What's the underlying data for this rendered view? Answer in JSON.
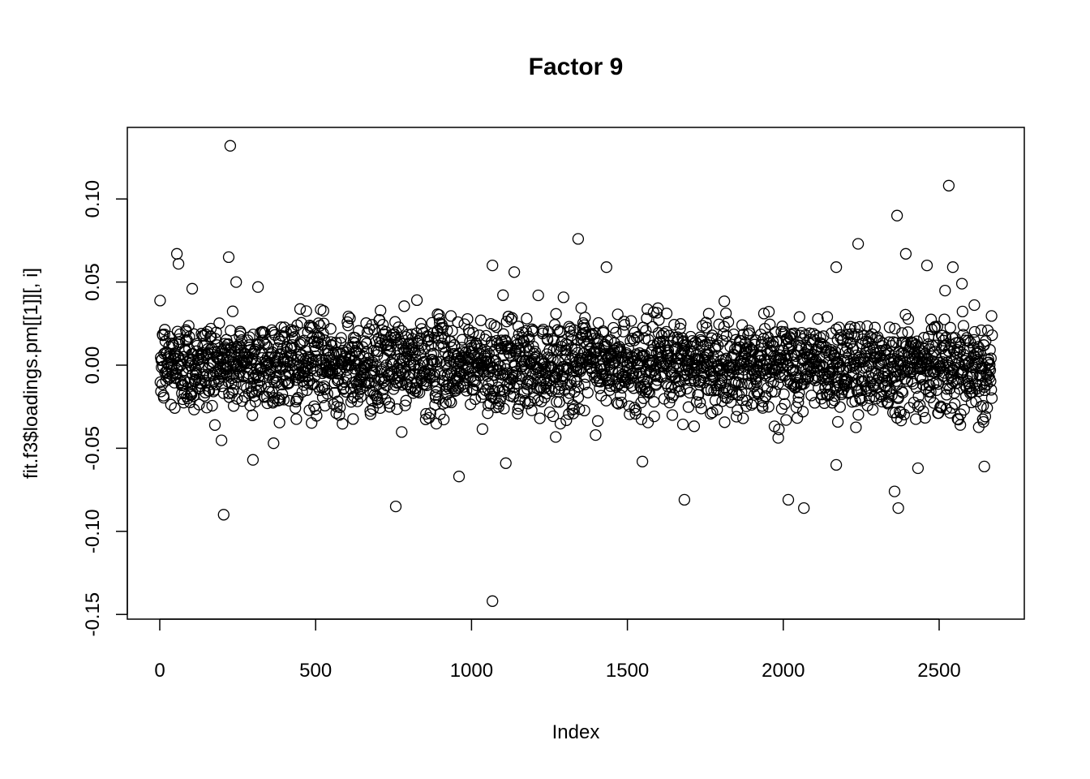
{
  "chart_data": {
    "type": "scatter",
    "title": "Factor 9",
    "xlabel": "Index",
    "ylabel": "fit.f3$loadings.pm[[1]][, i]",
    "xlim": [
      -100,
      2780
    ],
    "ylim": [
      -0.157,
      0.145
    ],
    "xticks": [
      0,
      500,
      1000,
      1500,
      2000,
      2500
    ],
    "xtick_labels": [
      "0",
      "500",
      "1000",
      "1500",
      "2000",
      "2500"
    ],
    "yticks": [
      -0.15,
      -0.1,
      -0.05,
      0.0,
      0.05,
      0.1
    ],
    "ytick_labels": [
      "-0.15",
      "-0.10",
      "-0.05",
      "0.00",
      "0.05",
      "0.10"
    ],
    "grid": false,
    "legend": "none",
    "marker": "open-circle",
    "color": "#000000",
    "n_points": 2670,
    "bulk_spread_sd": 0.014,
    "notable_points": [
      [
        226,
        0.132
      ],
      [
        2531,
        0.108
      ],
      [
        2365,
        0.09
      ],
      [
        1342,
        0.076
      ],
      [
        2240,
        0.073
      ],
      [
        55,
        0.067
      ],
      [
        60,
        0.061
      ],
      [
        2393,
        0.067
      ],
      [
        221,
        0.065
      ],
      [
        2544,
        0.059
      ],
      [
        2461,
        0.06
      ],
      [
        2170,
        0.059
      ],
      [
        1433,
        0.059
      ],
      [
        1067,
        0.06
      ],
      [
        1137,
        0.056
      ],
      [
        104,
        0.046
      ],
      [
        245,
        0.05
      ],
      [
        315,
        0.047
      ],
      [
        2573,
        0.049
      ],
      [
        205,
        -0.09
      ],
      [
        757,
        -0.085
      ],
      [
        1067,
        -0.142
      ],
      [
        960,
        -0.067
      ],
      [
        1683,
        -0.081
      ],
      [
        2016,
        -0.081
      ],
      [
        2066,
        -0.086
      ],
      [
        2369,
        -0.086
      ],
      [
        2357,
        -0.076
      ],
      [
        299,
        -0.057
      ],
      [
        1110,
        -0.059
      ],
      [
        1548,
        -0.058
      ],
      [
        2170,
        -0.06
      ],
      [
        2645,
        -0.061
      ],
      [
        2432,
        -0.062
      ]
    ]
  }
}
